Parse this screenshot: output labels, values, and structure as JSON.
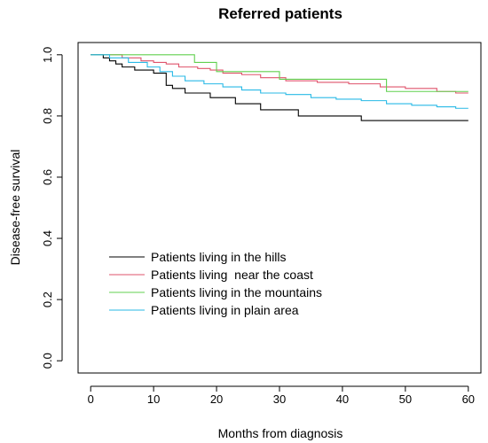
{
  "chart_data": {
    "type": "line",
    "title": "Referred patients",
    "xlabel": "Months from diagnosis",
    "ylabel": "Disease-free survival",
    "xlim": [
      -2,
      62
    ],
    "ylim": [
      -0.04,
      1.04
    ],
    "xticks": [
      0,
      10,
      20,
      30,
      40,
      50,
      60
    ],
    "yticks": [
      0.0,
      0.2,
      0.4,
      0.6,
      0.8,
      1.0
    ],
    "xtick_labels": [
      "0",
      "10",
      "20",
      "30",
      "40",
      "50",
      "60"
    ],
    "ytick_labels": [
      "0.0",
      "0.2",
      "0.4",
      "0.6",
      "0.8",
      "1.0"
    ],
    "grid": false,
    "legend_position": "bottom-left",
    "series": [
      {
        "name": "Patients living in the hills",
        "color": "#000000",
        "x": [
          0,
          2,
          3,
          4,
          5,
          7,
          10,
          12,
          13,
          15,
          19,
          23,
          27,
          33,
          43,
          60
        ],
        "y": [
          1.0,
          0.99,
          0.98,
          0.97,
          0.96,
          0.95,
          0.94,
          0.9,
          0.89,
          0.875,
          0.86,
          0.84,
          0.82,
          0.8,
          0.785,
          0.785
        ]
      },
      {
        "name": "Patients living  near the coast",
        "color": "#DF536B",
        "x": [
          0,
          5,
          8,
          10,
          12,
          14,
          17,
          19,
          21,
          24,
          27,
          31,
          36,
          41,
          46,
          50,
          55,
          58,
          60
        ],
        "y": [
          1.0,
          0.99,
          0.98,
          0.975,
          0.97,
          0.96,
          0.955,
          0.95,
          0.94,
          0.935,
          0.925,
          0.915,
          0.91,
          0.905,
          0.895,
          0.89,
          0.88,
          0.875,
          0.875
        ]
      },
      {
        "name": "Patients living in the mountains",
        "color": "#61D04F",
        "x": [
          0,
          16.5,
          20,
          30,
          47,
          60
        ],
        "y": [
          1.0,
          0.975,
          0.945,
          0.92,
          0.88,
          0.88
        ]
      },
      {
        "name": "Patients living in plain area",
        "color": "#28B9E6",
        "x": [
          0,
          3,
          6,
          9,
          11,
          13,
          15,
          18,
          21,
          24,
          27,
          31,
          35,
          39,
          43,
          47,
          51,
          55,
          58,
          60
        ],
        "y": [
          1.0,
          0.99,
          0.975,
          0.96,
          0.945,
          0.93,
          0.915,
          0.905,
          0.895,
          0.885,
          0.875,
          0.87,
          0.86,
          0.855,
          0.85,
          0.84,
          0.835,
          0.83,
          0.825,
          0.825
        ]
      }
    ]
  }
}
